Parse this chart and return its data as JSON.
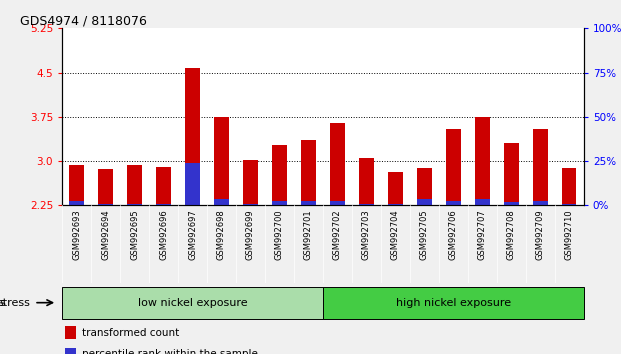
{
  "title": "GDS4974 / 8118076",
  "samples": [
    "GSM992693",
    "GSM992694",
    "GSM992695",
    "GSM992696",
    "GSM992697",
    "GSM992698",
    "GSM992699",
    "GSM992700",
    "GSM992701",
    "GSM992702",
    "GSM992703",
    "GSM992704",
    "GSM992705",
    "GSM992706",
    "GSM992707",
    "GSM992708",
    "GSM992709",
    "GSM992710"
  ],
  "red_values": [
    2.93,
    2.86,
    2.93,
    2.9,
    4.57,
    3.75,
    3.02,
    3.28,
    3.35,
    3.65,
    3.06,
    2.82,
    2.88,
    3.55,
    3.75,
    3.3,
    3.55,
    2.88
  ],
  "blue_values": [
    2.32,
    2.27,
    2.27,
    2.27,
    2.96,
    2.35,
    2.27,
    2.33,
    2.33,
    2.33,
    2.28,
    2.27,
    2.35,
    2.33,
    2.35,
    2.3,
    2.33,
    2.27
  ],
  "y_min": 2.25,
  "y_max": 5.25,
  "y_ticks": [
    2.25,
    3.0,
    3.75,
    4.5,
    5.25
  ],
  "y_right_tick_labels": [
    "0%",
    "25%",
    "50%",
    "75%",
    "100%"
  ],
  "dotted_lines": [
    3.0,
    3.75,
    4.5
  ],
  "group1_label": "low nickel exposure",
  "group2_label": "high nickel exposure",
  "group1_count": 9,
  "stress_label": "stress",
  "legend_red": "transformed count",
  "legend_blue": "percentile rank within the sample",
  "bar_width": 0.5,
  "red_color": "#cc0000",
  "blue_color": "#3333cc",
  "group1_color": "#aaddaa",
  "group2_color": "#44cc44",
  "xtick_bg_color": "#c8c8c8",
  "plot_bg": "#ffffff",
  "fig_bg": "#f0f0f0"
}
